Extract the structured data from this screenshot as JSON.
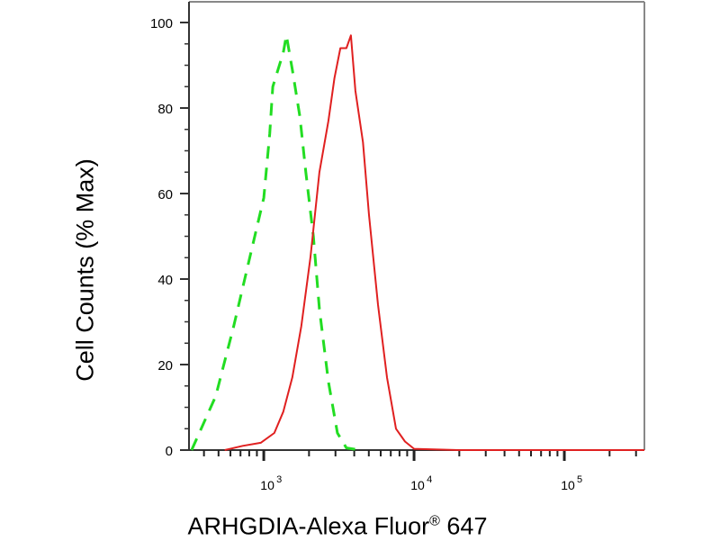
{
  "chart_data": {
    "type": "line",
    "title": "",
    "xlabel": "ARHGDIA-Alexa Fluor",
    "xlabel_mark": "®",
    "xlabel_suffix": " 647",
    "ylabel": "Cell Counts (% Max)",
    "x_scale": "log",
    "xlim": [
      318,
      341000
    ],
    "ylim": [
      0,
      100
    ],
    "yticks": [
      "0",
      "20",
      "40",
      "60",
      "80",
      "100"
    ],
    "xticks": [
      {
        "base": "10",
        "exp": "3",
        "value": 1000
      },
      {
        "base": "10",
        "exp": "4",
        "value": 10000
      },
      {
        "base": "10",
        "exp": "5",
        "value": 100000
      }
    ],
    "grid": false,
    "series": [
      {
        "style": "dashed",
        "color": "#22dd22",
        "x": [
          331,
          479,
          631,
          832,
          1000,
          1096,
          1148,
          1349,
          1413,
          1549,
          1738,
          1905,
          2138,
          2344,
          2692,
          3090,
          3548,
          4365
        ],
        "y": [
          0,
          12.6,
          29,
          47,
          59,
          74,
          85,
          93,
          97,
          89,
          78,
          65,
          50,
          33,
          16,
          4,
          0.5,
          0
        ]
      },
      {
        "style": "solid",
        "color": "#e02020",
        "x": [
          550,
          724,
          955,
          1175,
          1349,
          1549,
          1778,
          2042,
          2344,
          2692,
          2951,
          3236,
          3548,
          3802,
          4074,
          4571,
          5012,
          5754,
          6607,
          7586,
          8710,
          10000,
          20000,
          100000,
          341000
        ],
        "y": [
          0,
          1,
          1.7,
          4,
          9,
          17,
          29,
          45,
          65,
          77,
          87,
          94,
          94,
          97,
          84,
          72,
          55,
          34,
          17,
          5,
          2,
          0.3,
          0,
          0,
          0
        ]
      }
    ]
  }
}
